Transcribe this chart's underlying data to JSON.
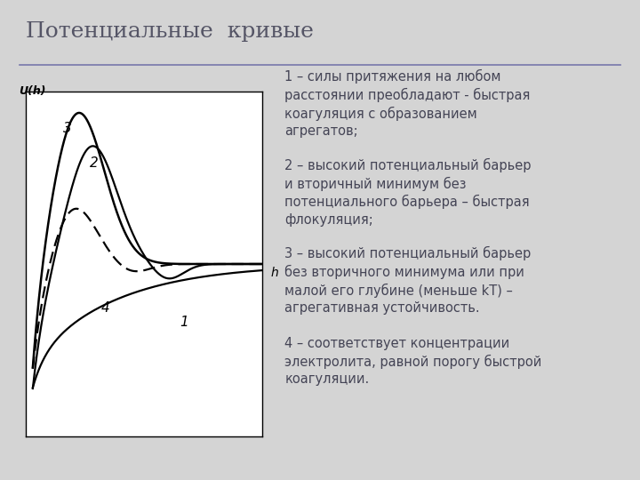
{
  "title": "Потенциальные  кривые",
  "title_fontsize": 18,
  "title_color": "#555566",
  "bg_color": "#d4d4d4",
  "plot_bg_color": "#ffffff",
  "separator_color": "#7777aa",
  "text_color": "#444455",
  "text_fontsize": 10.5,
  "ylabel": "U(h)",
  "xlabel": "h",
  "desc1": "1 – силы притяжения на любом\nрасстоянии преобладают - быстрая\nкоагуляция с образованием\nагрегатов;",
  "desc2": "2 – высокий потенциальный барьер\nи вторичный минимум без\nпотенциального барьера – быстрая\nфлокуляция;",
  "desc3": "3 – высокий потенциальный барьер\nбез вторичного минимума или при\nмалой его глубине (меньше kT) –\nагрегативная устойчивость.",
  "desc4": "4 – соответствует концентрации\nэлектролита, равной порогу быстрой\nкоагуляции."
}
